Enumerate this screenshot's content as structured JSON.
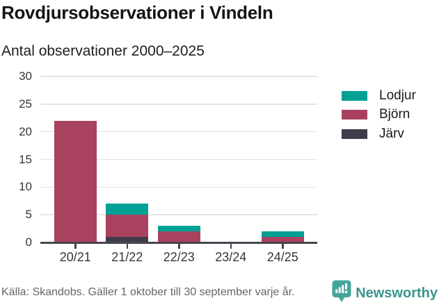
{
  "header": {
    "title": "Rovdjursobservationer i Vindeln",
    "subtitle": "Antal observationer 2000–2025"
  },
  "chart_data": {
    "type": "bar",
    "stacked": true,
    "title": "Rovdjursobservationer i Vindeln",
    "subtitle": "Antal observationer 2000–2025",
    "categories": [
      "20/21",
      "21/22",
      "22/23",
      "23/24",
      "24/25"
    ],
    "series": [
      {
        "name": "Järv",
        "color": "#3f3d4b",
        "values": [
          0,
          1,
          0,
          0,
          0
        ]
      },
      {
        "name": "Björn",
        "color": "#a9425f",
        "values": [
          22,
          4,
          2,
          0,
          1
        ]
      },
      {
        "name": "Lodjur",
        "color": "#00a094",
        "values": [
          0,
          2,
          1,
          0,
          1
        ]
      }
    ],
    "stack_order_bottom_to_top": [
      "Järv",
      "Björn",
      "Lodjur"
    ],
    "totals": [
      22,
      7,
      3,
      0,
      2
    ],
    "legend_order": [
      "Lodjur",
      "Björn",
      "Järv"
    ],
    "legend_position": "right",
    "xlabel": "",
    "ylabel": "",
    "ylim": [
      0,
      30
    ],
    "yticks": [
      0,
      5,
      10,
      15,
      20,
      25,
      30
    ],
    "grid": true
  },
  "footer": {
    "source": "Källa: Skandobs. Gäller 1 oktober till 30 september varje år.",
    "brand": "Newsworthy",
    "brand_color": "#3a948d",
    "icon_color": "#44a39a"
  }
}
